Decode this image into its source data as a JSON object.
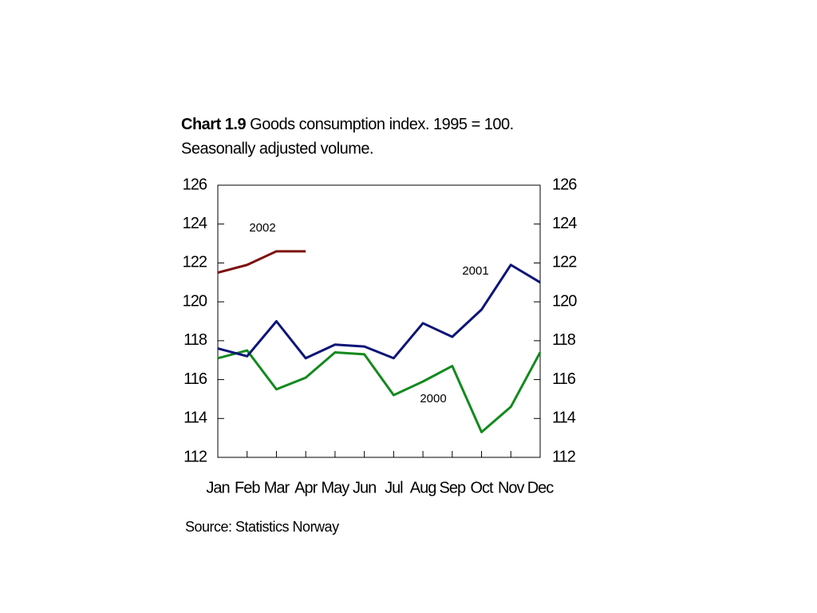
{
  "chart_data": {
    "type": "line",
    "title_prefix": "Chart 1.9",
    "title": "Goods consumption index. 1995 = 100.",
    "subtitle": "Seasonally adjusted volume.",
    "source": "Source: Statistics Norway",
    "categories": [
      "Jan",
      "Feb",
      "Mar",
      "Apr",
      "May",
      "Jun",
      "Jul",
      "Aug",
      "Sep",
      "Oct",
      "Nov",
      "Dec"
    ],
    "series": [
      {
        "name": "2000",
        "color": "#138a1e",
        "values": [
          117.1,
          117.5,
          115.5,
          116.1,
          117.4,
          117.3,
          115.2,
          115.9,
          116.7,
          113.3,
          114.6,
          117.4
        ]
      },
      {
        "name": "2001",
        "color": "#0c1577",
        "values": [
          117.6,
          117.2,
          119.0,
          117.1,
          117.8,
          117.7,
          117.1,
          118.9,
          118.2,
          119.6,
          121.9,
          121.0
        ]
      },
      {
        "name": "2002",
        "color": "#7d0e0e",
        "values": [
          121.5,
          121.9,
          122.6,
          122.6,
          null,
          null,
          null,
          null,
          null,
          null,
          null,
          null
        ]
      }
    ],
    "ylim": [
      112,
      126
    ],
    "yticks": [
      112,
      114,
      116,
      118,
      120,
      122,
      124,
      126
    ],
    "y2lim": [
      112,
      126
    ],
    "y2ticks": [
      112,
      114,
      116,
      118,
      120,
      122,
      124,
      126
    ],
    "grid": false
  }
}
